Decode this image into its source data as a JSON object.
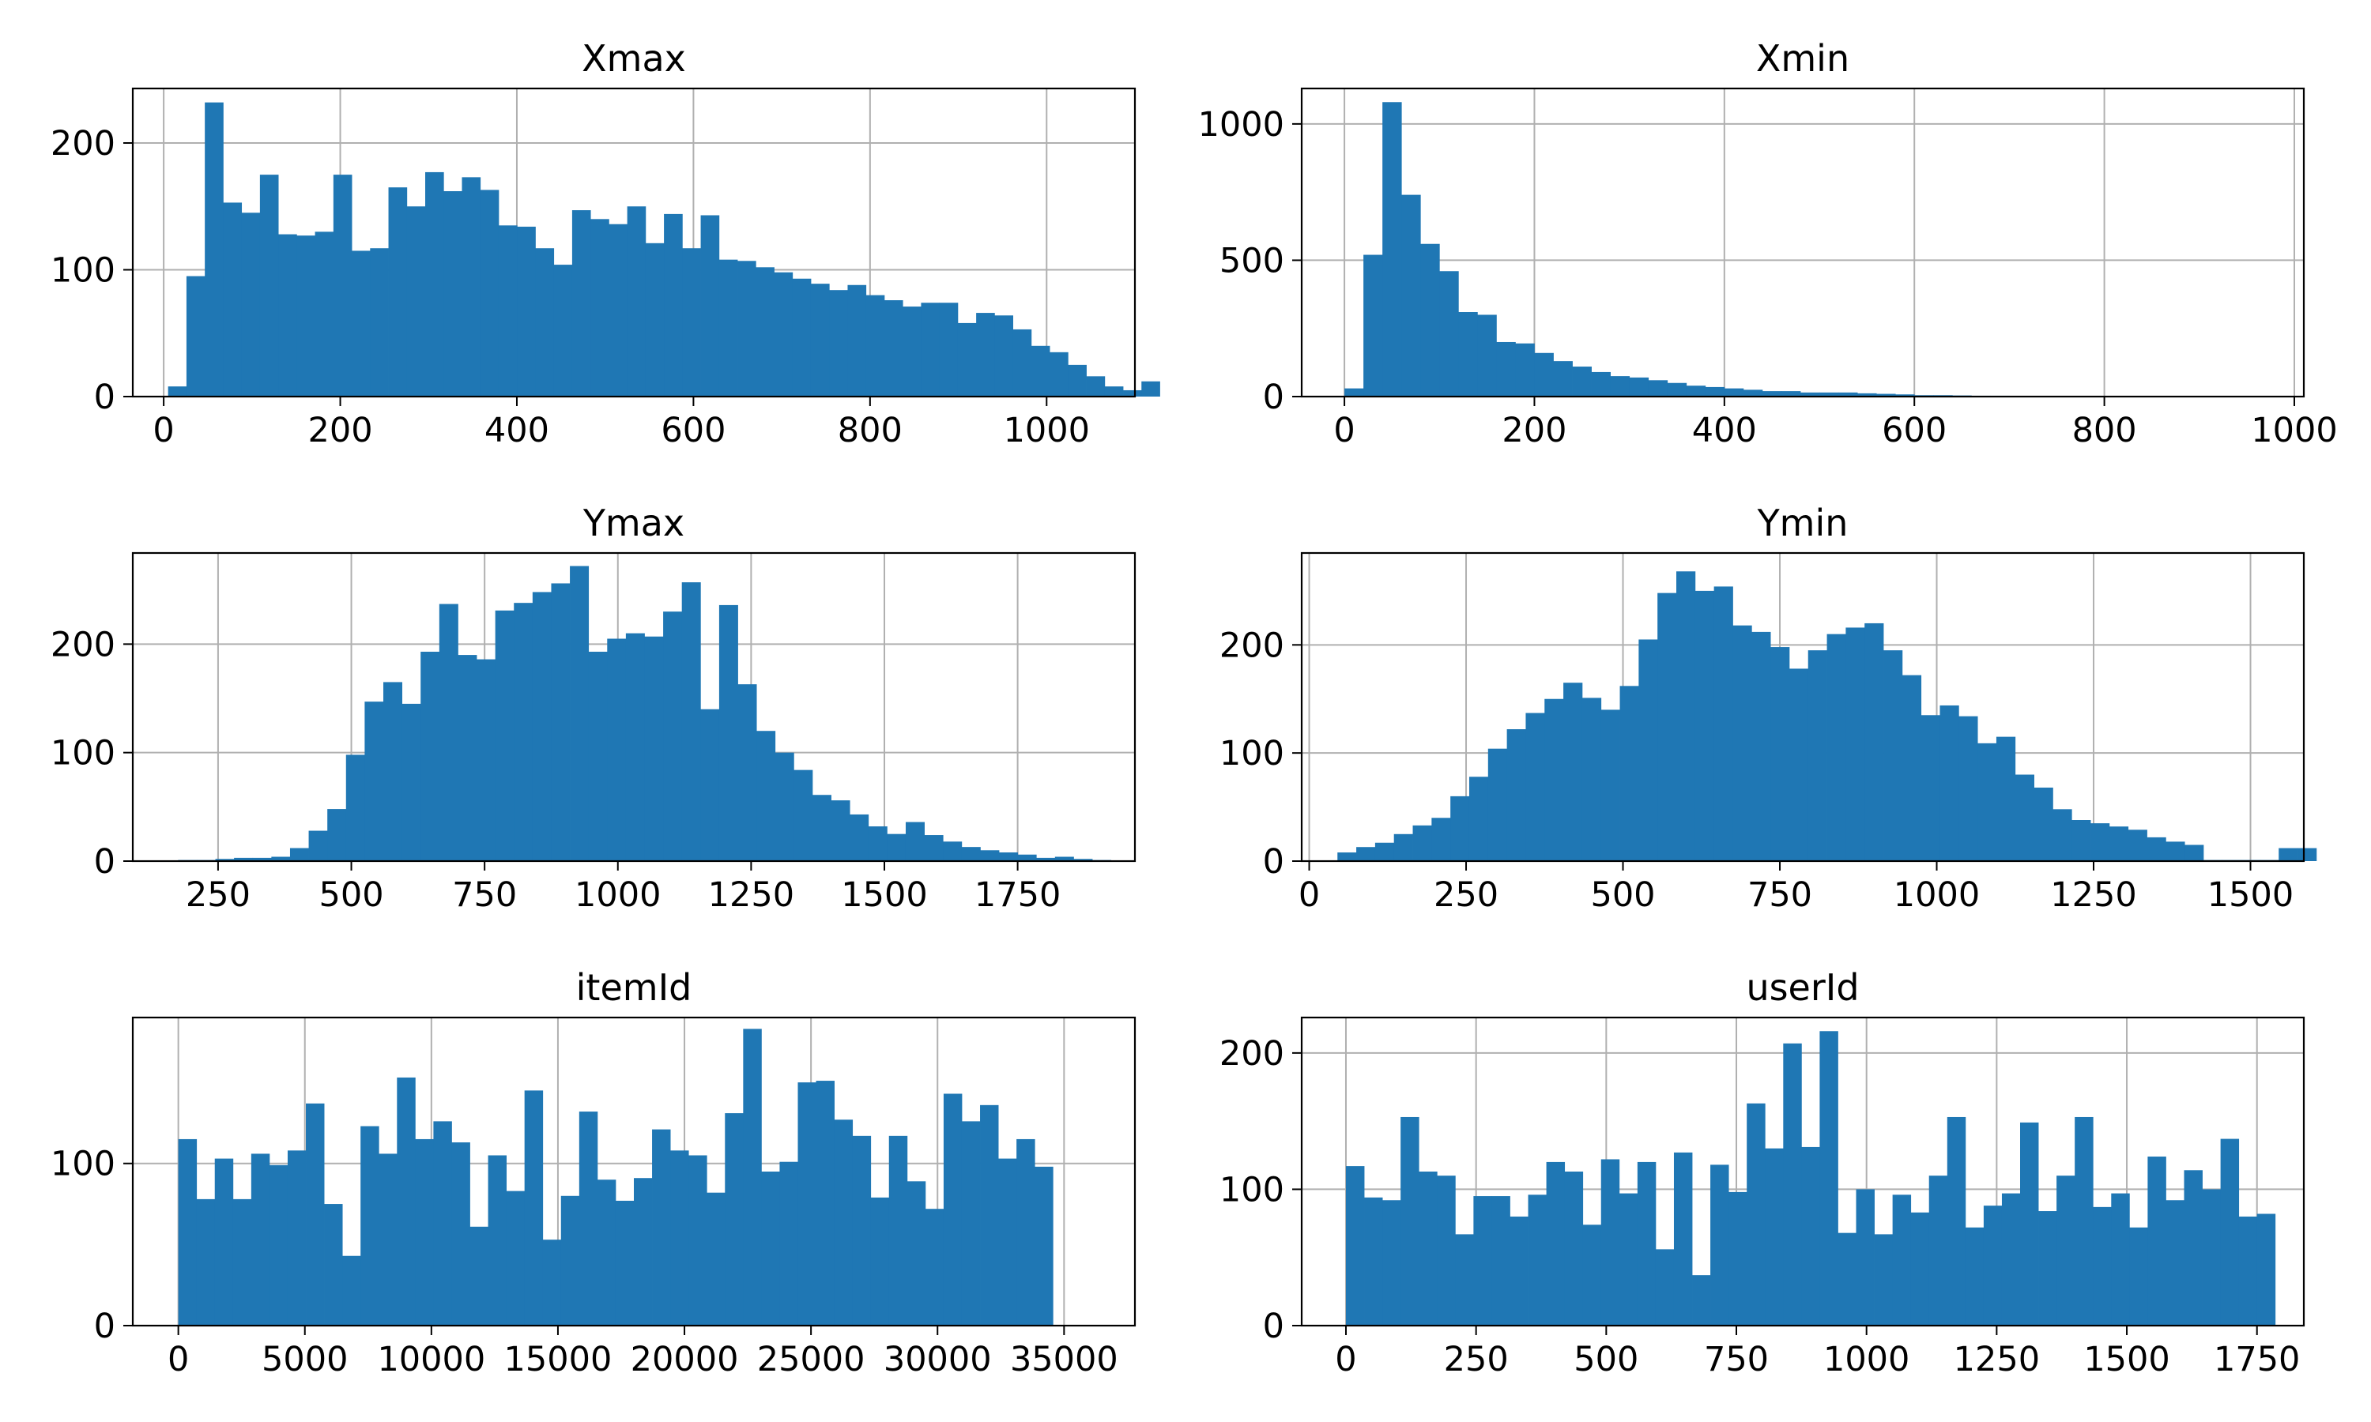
{
  "chart_data": [
    {
      "type": "bar",
      "title": "Xmax",
      "bin_start": 5,
      "bin_width": 20.8,
      "values": [
        8,
        95,
        232,
        153,
        145,
        175,
        128,
        127,
        130,
        175,
        115,
        117,
        165,
        150,
        177,
        162,
        173,
        163,
        135,
        134,
        117,
        104,
        147,
        140,
        136,
        150,
        121,
        144,
        117,
        143,
        108,
        107,
        102,
        98,
        93,
        89,
        84,
        88,
        80,
        76,
        71,
        74,
        74,
        58,
        66,
        64,
        53,
        40,
        35,
        25,
        16,
        8,
        5,
        12
      ],
      "xlim": [
        -35,
        1100
      ],
      "ylim": [
        0,
        243
      ],
      "xticks": [
        "0",
        "200",
        "400",
        "600",
        "800",
        "1000"
      ],
      "xtick_values": [
        0,
        200,
        400,
        600,
        800,
        1000
      ],
      "yticks": [
        "0",
        "100",
        "200"
      ],
      "ytick_values": [
        0,
        100,
        200
      ]
    },
    {
      "type": "bar",
      "title": "Xmin",
      "bin_start": 0,
      "bin_width": 20,
      "values": [
        30,
        520,
        1080,
        740,
        560,
        460,
        310,
        300,
        200,
        195,
        160,
        130,
        110,
        90,
        75,
        70,
        60,
        50,
        40,
        35,
        30,
        25,
        20,
        20,
        15,
        15,
        15,
        12,
        10,
        8,
        5,
        5,
        4,
        3,
        3,
        2,
        2,
        2,
        1,
        1,
        1,
        1,
        1,
        1,
        1,
        1,
        1,
        0,
        0
      ],
      "xlim": [
        -45,
        1010
      ],
      "ylim": [
        0,
        1130
      ],
      "xticks": [
        "0",
        "200",
        "400",
        "600",
        "800",
        "1000"
      ],
      "xtick_values": [
        0,
        200,
        400,
        600,
        800,
        1000
      ],
      "yticks": [
        "0",
        "500",
        "1000"
      ],
      "ytick_values": [
        0,
        500,
        1000
      ]
    },
    {
      "type": "bar",
      "title": "Ymax",
      "bin_start": 175,
      "bin_width": 35,
      "values": [
        1,
        1,
        2,
        3,
        3,
        4,
        12,
        28,
        48,
        98,
        147,
        165,
        145,
        193,
        237,
        190,
        186,
        231,
        238,
        248,
        256,
        272,
        193,
        205,
        210,
        207,
        230,
        257,
        140,
        236,
        163,
        120,
        100,
        84,
        61,
        56,
        43,
        32,
        25,
        36,
        24,
        18,
        13,
        10,
        8,
        6,
        3,
        4,
        2,
        1
      ],
      "xlim": [
        90,
        1970
      ],
      "ylim": [
        0,
        284
      ],
      "xticks": [
        "250",
        "500",
        "750",
        "1000",
        "1250",
        "1500",
        "1750"
      ],
      "xtick_values": [
        250,
        500,
        750,
        1000,
        1250,
        1500,
        1750
      ],
      "yticks": [
        "0",
        "100",
        "200"
      ],
      "ytick_values": [
        0,
        100,
        200
      ]
    },
    {
      "type": "bar",
      "title": "Ymin",
      "bin_start": 45,
      "bin_width": 30,
      "values": [
        8,
        13,
        17,
        25,
        33,
        40,
        60,
        78,
        104,
        122,
        137,
        150,
        165,
        151,
        140,
        162,
        205,
        248,
        268,
        250,
        254,
        218,
        212,
        198,
        178,
        195,
        210,
        216,
        220,
        195,
        172,
        135,
        144,
        134,
        109,
        115,
        80,
        68,
        48,
        38,
        35,
        32,
        29,
        22,
        18,
        15,
        1,
        1,
        1,
        1,
        12,
        12
      ],
      "xlim": [
        -12,
        1585
      ],
      "ylim": [
        0,
        285
      ],
      "xticks": [
        "0",
        "250",
        "500",
        "750",
        "1000",
        "1250",
        "1500"
      ],
      "xtick_values": [
        0,
        250,
        500,
        750,
        1000,
        1250,
        1500
      ],
      "yticks": [
        "0",
        "100",
        "200"
      ],
      "ytick_values": [
        0,
        100,
        200
      ]
    },
    {
      "type": "bar",
      "title": "itemId",
      "bin_start": 0,
      "bin_width": 720,
      "values": [
        115,
        78,
        103,
        78,
        106,
        99,
        108,
        137,
        75,
        43,
        123,
        106,
        153,
        115,
        126,
        113,
        61,
        105,
        83,
        145,
        53,
        80,
        132,
        90,
        77,
        91,
        121,
        108,
        105,
        82,
        131,
        183,
        95,
        101,
        150,
        151,
        127,
        117,
        79,
        117,
        89,
        72,
        143,
        126,
        136,
        103,
        115,
        98
      ],
      "xlim": [
        -1800,
        37800
      ],
      "ylim": [
        0,
        190
      ],
      "xticks": [
        "0",
        "5000",
        "10000",
        "15000",
        "20000",
        "25000",
        "30000",
        "35000"
      ],
      "xtick_values": [
        0,
        5000,
        10000,
        15000,
        20000,
        25000,
        30000,
        35000
      ],
      "yticks": [
        "0",
        "100"
      ],
      "ytick_values": [
        0,
        100
      ]
    },
    {
      "type": "bar",
      "title": "userId",
      "bin_start": 0,
      "bin_width": 35,
      "values": [
        117,
        94,
        92,
        153,
        113,
        110,
        67,
        95,
        95,
        80,
        96,
        120,
        113,
        74,
        122,
        97,
        120,
        56,
        127,
        37,
        118,
        98,
        163,
        130,
        207,
        131,
        216,
        68,
        100,
        67,
        96,
        83,
        110,
        153,
        72,
        88,
        97,
        149,
        84,
        110,
        153,
        87,
        97,
        72,
        124,
        92,
        114,
        100,
        137,
        80,
        82
      ],
      "xlim": [
        -85,
        1840
      ],
      "ylim": [
        0,
        226
      ],
      "xticks": [
        "0",
        "250",
        "500",
        "750",
        "1000",
        "1250",
        "1500",
        "1750"
      ],
      "xtick_values": [
        0,
        250,
        500,
        750,
        1000,
        1250,
        1500,
        1750
      ],
      "yticks": [
        "0",
        "100",
        "200"
      ],
      "ytick_values": [
        0,
        100,
        200
      ]
    }
  ]
}
